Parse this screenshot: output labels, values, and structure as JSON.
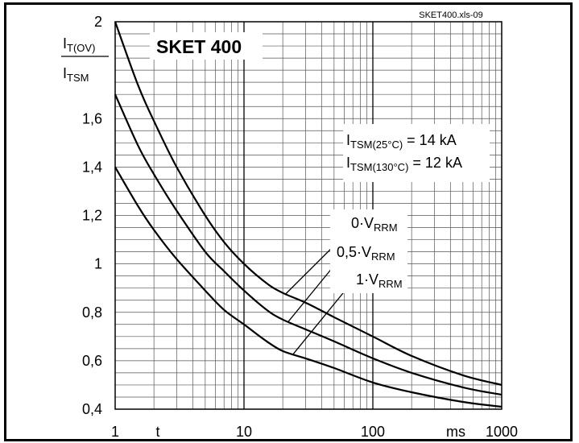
{
  "file_tag": "SKET400.xls-09",
  "chart_data": {
    "type": "line",
    "title": "SKET 400",
    "ylabel": {
      "numerator": "I",
      "numerator_sub": "T(OV)",
      "denominator": "I",
      "denominator_sub": "TSM"
    },
    "xlabel_symbol": "t",
    "xunit": "ms",
    "x_scale": "log",
    "xlim": [
      1,
      1000
    ],
    "ylim": [
      0.4,
      2
    ],
    "x_ticks": [
      "1",
      "10",
      "100",
      "1000"
    ],
    "y_ticks": [
      "0,4",
      "0,6",
      "0,8",
      "1",
      "1,2",
      "1,4",
      "1,6",
      "2"
    ],
    "grid": true,
    "annotations": [
      {
        "prefix": "I",
        "sub": "TSM(25°C)",
        "text": " = 14 kA"
      },
      {
        "prefix": "I",
        "sub": "TSM(130°C)",
        "text": " = 12 kA"
      }
    ],
    "series": [
      {
        "name_prefix": "0·V",
        "name_sub": "RRM",
        "x": [
          1,
          1.5,
          2,
          3,
          5,
          7,
          10,
          15,
          20,
          30,
          50,
          100,
          200,
          500,
          1000
        ],
        "values": [
          2.0,
          1.74,
          1.59,
          1.4,
          1.2,
          1.09,
          1.0,
          0.92,
          0.88,
          0.84,
          0.78,
          0.7,
          0.62,
          0.54,
          0.5
        ]
      },
      {
        "name_prefix": "0,5·V",
        "name_sub": "RRM",
        "x": [
          1,
          1.5,
          2,
          3,
          5,
          7,
          10,
          15,
          20,
          30,
          50,
          100,
          200,
          500,
          1000
        ],
        "values": [
          1.7,
          1.49,
          1.37,
          1.22,
          1.05,
          0.97,
          0.89,
          0.81,
          0.77,
          0.73,
          0.68,
          0.61,
          0.55,
          0.49,
          0.46
        ]
      },
      {
        "name_prefix": "1·V",
        "name_sub": "RRM",
        "x": [
          1,
          1.5,
          2,
          3,
          5,
          7,
          10,
          15,
          20,
          30,
          50,
          100,
          200,
          500,
          1000
        ],
        "values": [
          1.4,
          1.24,
          1.14,
          1.02,
          0.89,
          0.81,
          0.75,
          0.68,
          0.64,
          0.61,
          0.57,
          0.51,
          0.47,
          0.43,
          0.41
        ]
      }
    ]
  }
}
